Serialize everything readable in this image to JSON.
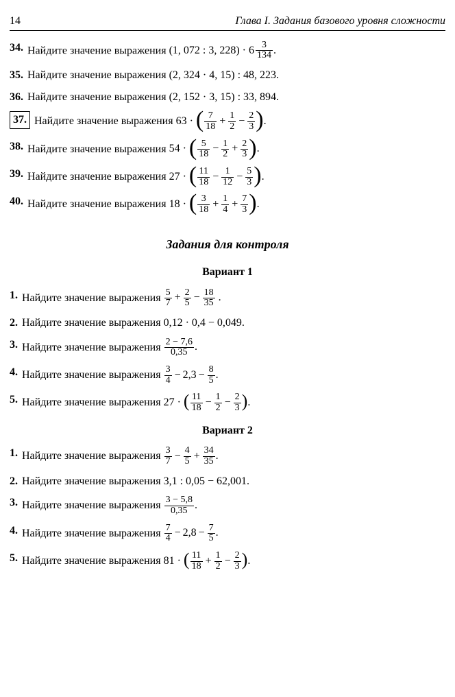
{
  "header": {
    "page_number": "14",
    "chapter": "Глава I. Задания базового уровня сложности"
  },
  "main_problems": [
    {
      "num": "34.",
      "boxed": false,
      "lead": "Найдите значение выражения ",
      "expr_type": "mixed_frac",
      "pre": "(1, 072 : 3, 228) · ",
      "whole": "6",
      "frac_n": "3",
      "frac_d": "134",
      "post": "."
    },
    {
      "num": "35.",
      "boxed": false,
      "lead": "Найдите значение выражения ",
      "expr_type": "plain",
      "expr": "(2, 324 · 4, 15) : 48, 223."
    },
    {
      "num": "36.",
      "boxed": false,
      "lead": "Найдите значение выражения ",
      "expr_type": "plain",
      "expr": "(2, 152 · 3, 15) : 33, 894."
    },
    {
      "num": "37.",
      "boxed": true,
      "lead": "Найдите значение выражения ",
      "expr_type": "frac_sum_big",
      "coef": "63 · ",
      "terms": [
        {
          "n": "7",
          "d": "18",
          "op": ""
        },
        {
          "n": "1",
          "d": "2",
          "op": "+"
        },
        {
          "n": "2",
          "d": "3",
          "op": "−"
        }
      ],
      "post": "."
    },
    {
      "num": "38.",
      "boxed": false,
      "lead": "Найдите значение выражения ",
      "expr_type": "frac_sum_big",
      "coef": "54 · ",
      "terms": [
        {
          "n": "5",
          "d": "18",
          "op": ""
        },
        {
          "n": "1",
          "d": "2",
          "op": "−"
        },
        {
          "n": "2",
          "d": "3",
          "op": "+"
        }
      ],
      "post": "."
    },
    {
      "num": "39.",
      "boxed": false,
      "lead": "Найдите значение выражения ",
      "expr_type": "frac_sum_big",
      "coef": "27 · ",
      "terms": [
        {
          "n": "11",
          "d": "18",
          "op": ""
        },
        {
          "n": "1",
          "d": "12",
          "op": "−"
        },
        {
          "n": "5",
          "d": "3",
          "op": "−"
        }
      ],
      "post": "."
    },
    {
      "num": "40.",
      "boxed": false,
      "lead": "Найдите значение выражения ",
      "expr_type": "frac_sum_big",
      "coef": "18 · ",
      "terms": [
        {
          "n": "3",
          "d": "18",
          "op": ""
        },
        {
          "n": "1",
          "d": "4",
          "op": "+"
        },
        {
          "n": "7",
          "d": "3",
          "op": "+"
        }
      ],
      "post": "."
    }
  ],
  "section_title": "Задания для контроля",
  "variants": [
    {
      "title": "Вариант 1",
      "problems": [
        {
          "num": "1.",
          "lead": "Найдите значение выражения ",
          "expr_type": "frac_sum",
          "terms": [
            {
              "n": "5",
              "d": "7",
              "op": ""
            },
            {
              "n": "2",
              "d": "5",
              "op": "+"
            },
            {
              "n": "18",
              "d": "35",
              "op": "−"
            }
          ],
          "post": " ."
        },
        {
          "num": "2.",
          "lead": "Найдите значение выражения ",
          "expr_type": "plain",
          "expr": "0,12 · 0,4 − 0,049."
        },
        {
          "num": "3.",
          "lead": "Найдите значение выражения ",
          "expr_type": "single_frac",
          "n": "2 − 7,6",
          "d": "0,35",
          "post": "."
        },
        {
          "num": "4.",
          "lead": "Найдите значение выражения ",
          "expr_type": "frac_mixed_line",
          "terms": [
            {
              "t": "frac",
              "n": "3",
              "d": "4",
              "op": ""
            },
            {
              "t": "plain",
              "v": "2,3",
              "op": "−"
            },
            {
              "t": "frac",
              "n": "8",
              "d": "5",
              "op": "−"
            }
          ],
          "post": "."
        },
        {
          "num": "5.",
          "lead": "Найдите значение выражения  ",
          "expr_type": "frac_sum_med",
          "coef": "27 · ",
          "terms": [
            {
              "n": "11",
              "d": "18",
              "op": ""
            },
            {
              "n": "1",
              "d": "2",
              "op": "−"
            },
            {
              "n": "2",
              "d": "3",
              "op": "−"
            }
          ],
          "post": "."
        }
      ]
    },
    {
      "title": "Вариант 2",
      "problems": [
        {
          "num": "1.",
          "lead": "Найдите значение выражения ",
          "expr_type": "frac_sum",
          "terms": [
            {
              "n": "3",
              "d": "7",
              "op": ""
            },
            {
              "n": "4",
              "d": "5",
              "op": "−"
            },
            {
              "n": "34",
              "d": "35",
              "op": "+"
            }
          ],
          "post": "."
        },
        {
          "num": "2.",
          "lead": "Найдите значение выражения ",
          "expr_type": "plain",
          "expr": "3,1 : 0,05 − 62,001."
        },
        {
          "num": "3.",
          "lead": "Найдите значение выражения ",
          "expr_type": "single_frac",
          "n": "3 − 5,8",
          "d": "0,35",
          "post": "."
        },
        {
          "num": "4.",
          "lead": "Найдите значение выражения ",
          "expr_type": "frac_mixed_line",
          "terms": [
            {
              "t": "frac",
              "n": "7",
              "d": "4",
              "op": ""
            },
            {
              "t": "plain",
              "v": "2,8",
              "op": "−"
            },
            {
              "t": "frac",
              "n": "7",
              "d": "5",
              "op": "−"
            }
          ],
          "post": "."
        },
        {
          "num": "5.",
          "lead": "Найдите значение выражения ",
          "expr_type": "frac_sum_med",
          "coef": "81 · ",
          "terms": [
            {
              "n": "11",
              "d": "18",
              "op": ""
            },
            {
              "n": "1",
              "d": "2",
              "op": "+"
            },
            {
              "n": "2",
              "d": "3",
              "op": "−"
            }
          ],
          "post": "."
        }
      ]
    }
  ]
}
